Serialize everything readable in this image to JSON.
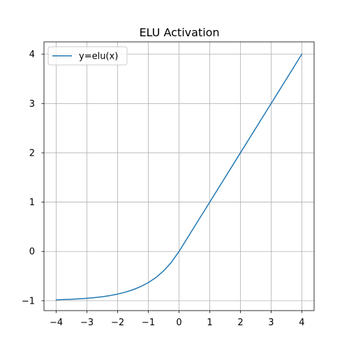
{
  "chart_data": {
    "type": "line",
    "title": "ELU Activation",
    "xlabel": "",
    "ylabel": "",
    "xlim": [
      -4.4,
      4.4
    ],
    "ylim": [
      -1.2,
      4.25
    ],
    "grid": true,
    "legend_position": "top-left",
    "x_ticks": [
      -4,
      -3,
      -2,
      -1,
      0,
      1,
      2,
      3,
      4
    ],
    "y_ticks": [
      -1,
      0,
      1,
      2,
      3,
      4
    ],
    "x_tick_labels": [
      "−4",
      "−3",
      "−2",
      "−1",
      "0",
      "1",
      "2",
      "3",
      "4"
    ],
    "y_tick_labels": [
      "−1",
      "0",
      "1",
      "2",
      "3",
      "4"
    ],
    "colors": {
      "series": "#1f77b4",
      "grid": "#b0b0b0",
      "axes": "#000000",
      "legend_border": "#cccccc"
    },
    "series": [
      {
        "name": "y=elu(x)",
        "x": [
          -4.0,
          -3.75,
          -3.5,
          -3.25,
          -3.0,
          -2.75,
          -2.5,
          -2.25,
          -2.0,
          -1.75,
          -1.5,
          -1.25,
          -1.0,
          -0.75,
          -0.5,
          -0.25,
          0.0,
          0.5,
          1.0,
          1.5,
          2.0,
          2.5,
          3.0,
          3.5,
          4.0
        ],
        "y": [
          -0.982,
          -0.976,
          -0.97,
          -0.961,
          -0.95,
          -0.936,
          -0.918,
          -0.895,
          -0.865,
          -0.826,
          -0.777,
          -0.713,
          -0.632,
          -0.528,
          -0.393,
          -0.221,
          0.0,
          0.5,
          1.0,
          1.5,
          2.0,
          2.5,
          3.0,
          3.5,
          4.0
        ]
      }
    ]
  }
}
